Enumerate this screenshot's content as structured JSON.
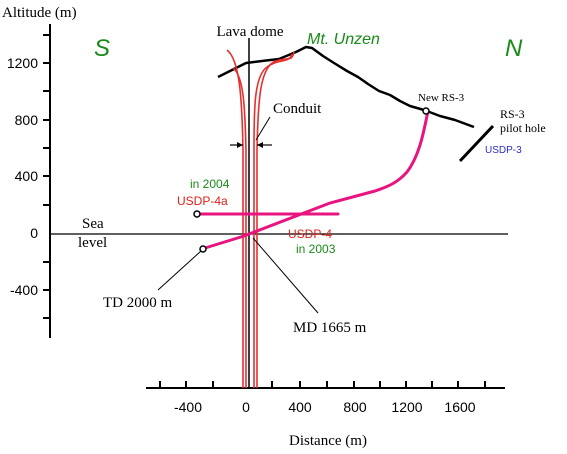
{
  "y_axis": {
    "title": "Altitude (m)",
    "tick_labels": [
      "1200",
      "800",
      "400",
      "0",
      "-400"
    ]
  },
  "x_axis": {
    "title": "Distance (m)",
    "tick_labels": [
      "-400",
      "0",
      "400",
      "800",
      "1200",
      "1600"
    ]
  },
  "sea_level": {
    "line1": "Sea",
    "line2": "level"
  },
  "compass": {
    "south": "S",
    "north": "N"
  },
  "labels": {
    "lava_dome": "Lava dome",
    "mountain": "Mt. Unzen",
    "conduit": "Conduit",
    "new_rs3": "New RS-3",
    "rs3_line1": "RS-3",
    "rs3_line2": "pilot hole",
    "usdp3": "USDP-3",
    "year_2004": "in 2004",
    "usdp4a": "USDP-4a",
    "usdp4": "USDP-4",
    "year_2003": "in 2003",
    "td": "TD 2000 m",
    "md": "MD 1665 m"
  },
  "colors": {
    "axis": "#000000",
    "well": "#e8147f",
    "conduit": "#e53030",
    "green": "#1a8a1a",
    "blue": "#2b2bcc",
    "usdp_label": "#e0201a"
  }
}
